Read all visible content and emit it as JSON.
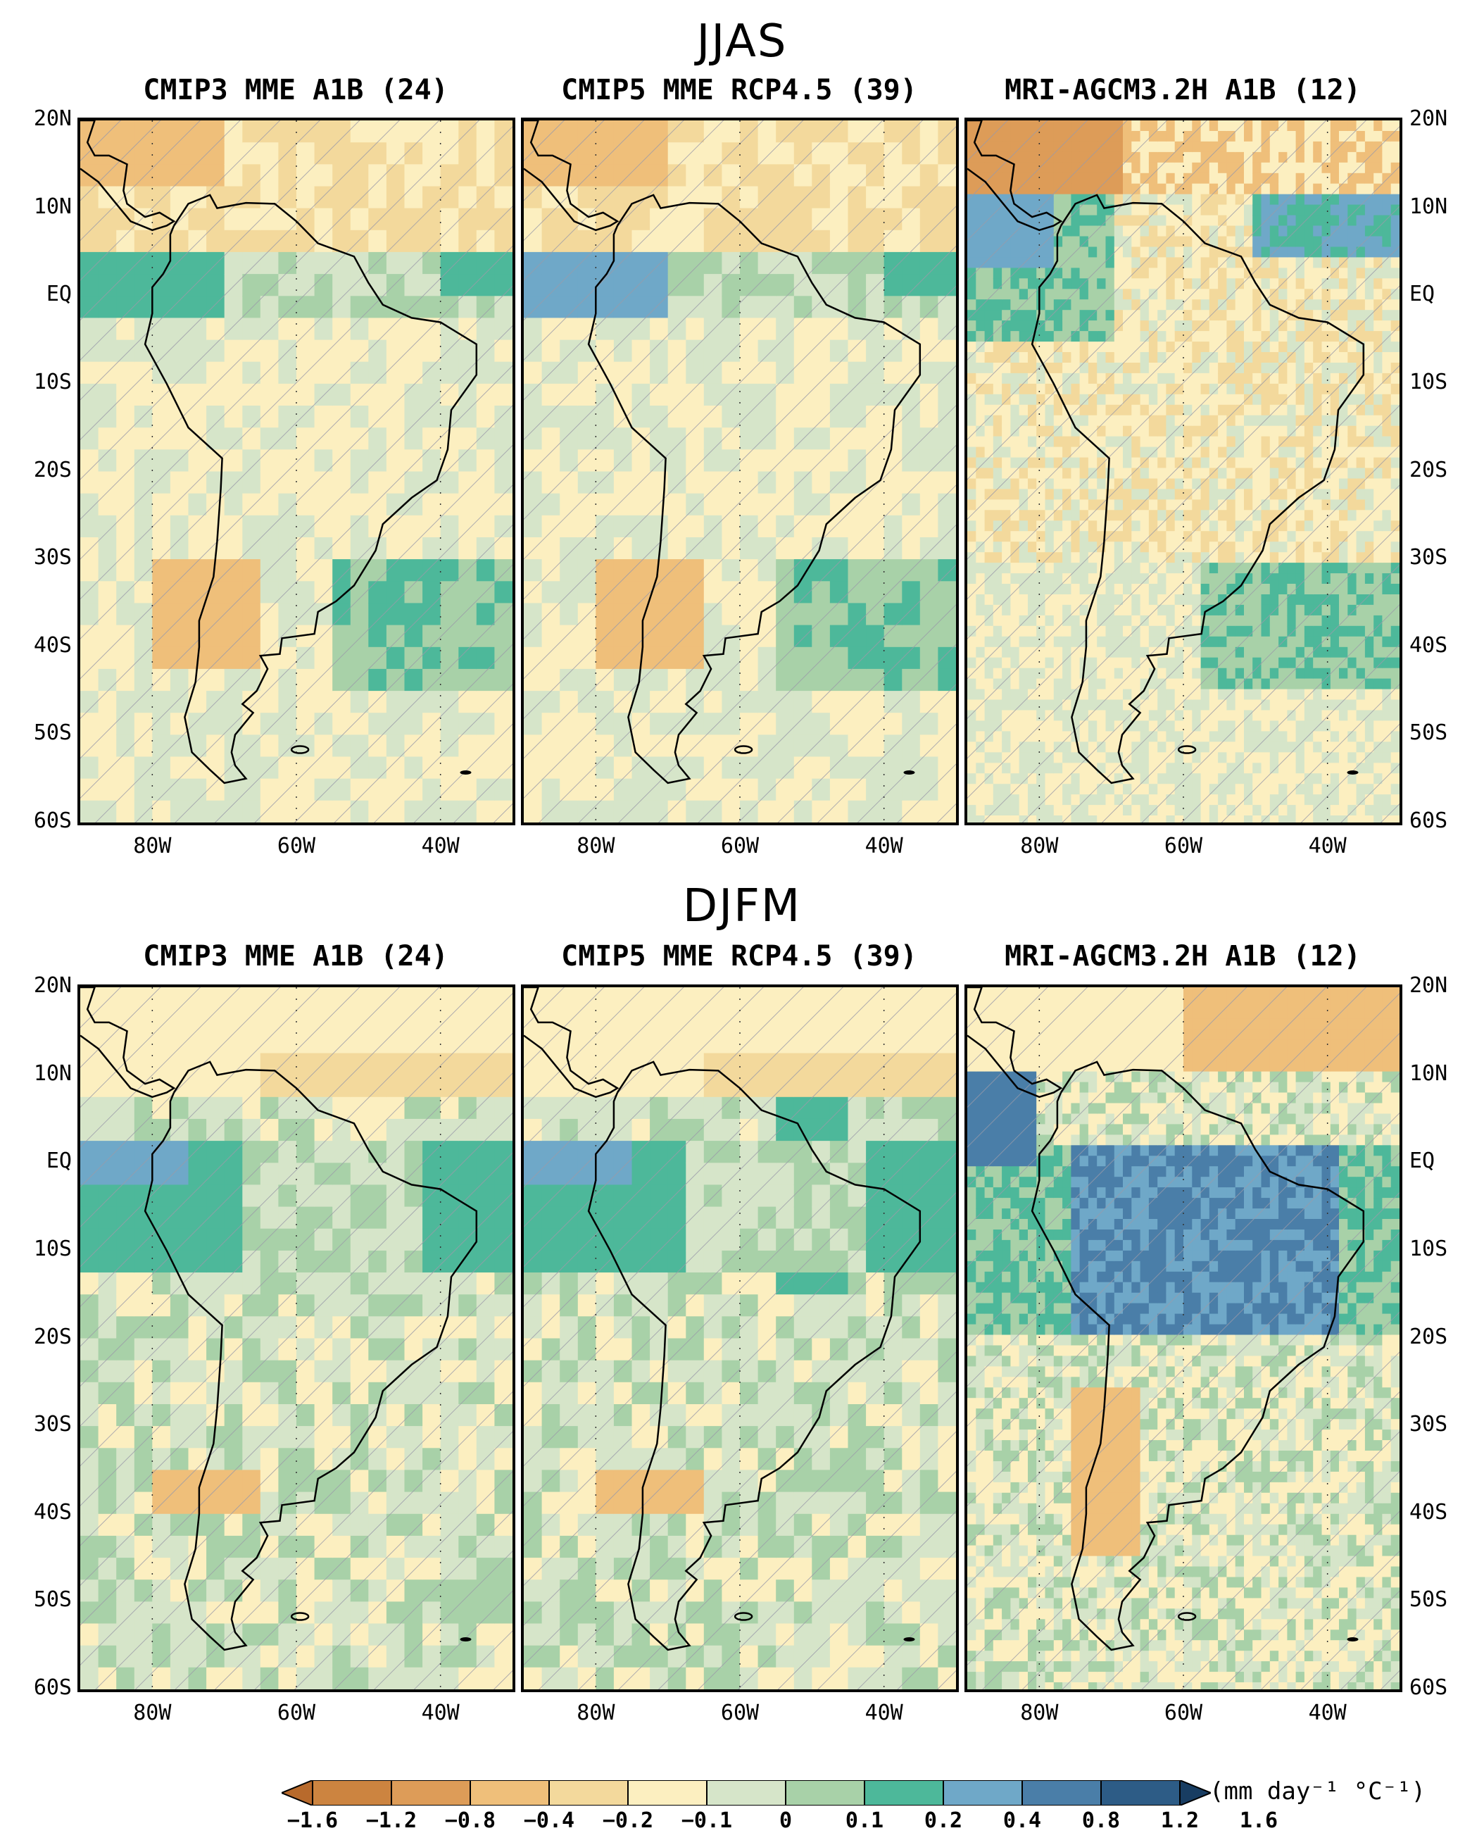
{
  "seasons": [
    {
      "title": "JJAS",
      "panels": [
        {
          "title": "CMIP3 MME A1B (24)",
          "pattern": "coarse-jjas-3"
        },
        {
          "title": "CMIP5 MME RCP4.5 (39)",
          "pattern": "coarse-jjas-5"
        },
        {
          "title": "MRI-AGCM3.2H A1B (12)",
          "pattern": "fine-jjas"
        }
      ]
    },
    {
      "title": "DJFM",
      "panels": [
        {
          "title": "CMIP3 MME A1B (24)",
          "pattern": "coarse-djfm-3"
        },
        {
          "title": "CMIP5 MME RCP4.5 (39)",
          "pattern": "coarse-djfm-5"
        },
        {
          "title": "MRI-AGCM3.2H A1B (12)",
          "pattern": "fine-djfm"
        }
      ]
    }
  ],
  "axes": {
    "lat_labels": [
      "20N",
      "10N",
      "EQ",
      "10S",
      "20S",
      "30S",
      "40S",
      "50S",
      "60S"
    ],
    "lon_labels": [
      "80W",
      "60W",
      "40W"
    ],
    "lat_range": [
      -60,
      20
    ],
    "lon_range": [
      -90,
      -30
    ]
  },
  "colorbar": {
    "labels": [
      "-1.6",
      "-1.2",
      "-0.8",
      "-0.4",
      "-0.2",
      "-0.1",
      "0",
      "0.1",
      "0.2",
      "0.4",
      "0.8",
      "1.2",
      "1.6"
    ],
    "colors": [
      "#b86a2c",
      "#cc8440",
      "#dd9c58",
      "#efbf7a",
      "#f3d99c",
      "#fcefc0",
      "#d6e5c9",
      "#a8d1a8",
      "#4db89a",
      "#6fa8c8",
      "#4a7ea8",
      "#2d5c86",
      "#183d62"
    ],
    "units": "(mm day⁻¹ °C⁻¹)"
  }
}
